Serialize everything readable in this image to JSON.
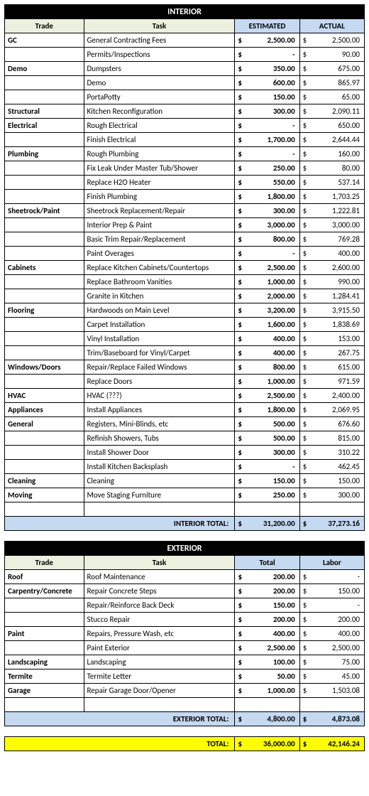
{
  "interior": {
    "title": "INTERIOR",
    "headers": {
      "trade": "Trade",
      "task": "Task",
      "est": "ESTIMATED",
      "act": "ACTUAL"
    },
    "rows": [
      {
        "trade": "GC",
        "task": "General Contracting Fees",
        "est": "2,500.00",
        "act": "2,500.00"
      },
      {
        "trade": "",
        "task": "Permits/Inspections",
        "est": "-",
        "act": "90.00"
      },
      {
        "trade": "Demo",
        "task": "Dumpsters",
        "est": "350.00",
        "act": "675.00"
      },
      {
        "trade": "",
        "task": "Demo",
        "est": "600.00",
        "act": "865.97"
      },
      {
        "trade": "",
        "task": "PortaPotty",
        "est": "150.00",
        "act": "65.00"
      },
      {
        "trade": "Structural",
        "task": "Kitchen Reconfiguration",
        "est": "300.00",
        "act": "2,090.11"
      },
      {
        "trade": "Electrical",
        "task": "Rough Electrical",
        "est": "-",
        "act": "650.00"
      },
      {
        "trade": "",
        "task": "Finish Electrical",
        "est": "1,700.00",
        "act": "2,644.44"
      },
      {
        "trade": "Plumbing",
        "task": "Rough Plumbing",
        "est": "-",
        "act": "160.00"
      },
      {
        "trade": "",
        "task": "Fix Leak Under Master Tub/Shower",
        "est": "250.00",
        "act": "80.00"
      },
      {
        "trade": "",
        "task": "Replace H2O Heater",
        "est": "550.00",
        "act": "537.14"
      },
      {
        "trade": "",
        "task": "Finish Plumbing",
        "est": "1,800.00",
        "act": "1,703.25"
      },
      {
        "trade": "Sheetrock/Paint",
        "task": "Sheetrock Replacement/Repair",
        "est": "300.00",
        "act": "1,222.81"
      },
      {
        "trade": "",
        "task": "Interior Prep & Paint",
        "est": "3,000.00",
        "act": "3,000.00"
      },
      {
        "trade": "",
        "task": "Basic Trim Repair/Replacement",
        "est": "800.00",
        "act": "769.28"
      },
      {
        "trade": "",
        "task": "Paint Overages",
        "est": "-",
        "act": "400.00"
      },
      {
        "trade": "Cabinets",
        "task": "Replace Kitchen Cabinets/Countertops",
        "est": "2,500.00",
        "act": "2,600.00"
      },
      {
        "trade": "",
        "task": "Replace Bathroom Vanities",
        "est": "1,000.00",
        "act": "990.00"
      },
      {
        "trade": "",
        "task": "Granite in Kitchen",
        "est": "2,000.00",
        "act": "1,284.41"
      },
      {
        "trade": "Flooring",
        "task": "Hardwoods on Main Level",
        "est": "3,200.00",
        "act": "3,915.50"
      },
      {
        "trade": "",
        "task": "Carpet Installation",
        "est": "1,600.00",
        "act": "1,838.69"
      },
      {
        "trade": "",
        "task": "Vinyl Installation",
        "est": "400.00",
        "act": "153.00"
      },
      {
        "trade": "",
        "task": "Trim/Baseboard for Vinyl/Carpet",
        "est": "400.00",
        "act": "267.75"
      },
      {
        "trade": "Windows/Doors",
        "task": "Repair/Replace Failed Windows",
        "est": "800.00",
        "act": "615.00"
      },
      {
        "trade": "",
        "task": "Replace Doors",
        "est": "1,000.00",
        "act": "971.59"
      },
      {
        "trade": "HVAC",
        "task": "HVAC (???)",
        "est": "2,500.00",
        "act": "2,400.00"
      },
      {
        "trade": "Appliances",
        "task": "Install Appliances",
        "est": "1,800.00",
        "act": "2,069.95"
      },
      {
        "trade": "General",
        "task": "Registers, Mini-Blinds, etc",
        "est": "500.00",
        "act": "676.60"
      },
      {
        "trade": "",
        "task": "Refinish Showers, Tubs",
        "est": "500.00",
        "act": "815.00"
      },
      {
        "trade": "",
        "task": "Install Shower Door",
        "est": "300.00",
        "act": "310.22"
      },
      {
        "trade": "",
        "task": "Install Kitchen Backsplash",
        "est": "-",
        "act": "462.45"
      },
      {
        "trade": "Cleaning",
        "task": "Cleaning",
        "est": "150.00",
        "act": "150.00"
      },
      {
        "trade": "Moving",
        "task": "Move Staging Furniture",
        "est": "250.00",
        "act": "300.00"
      }
    ],
    "total_label": "INTERIOR TOTAL:",
    "total_est": "31,200.00",
    "total_act": "37,273.16"
  },
  "exterior": {
    "title": "EXTERIOR",
    "headers": {
      "trade": "Trade",
      "task": "Task",
      "est": "Total",
      "act": "Labor"
    },
    "rows": [
      {
        "trade": "Roof",
        "task": "Roof Maintenance",
        "est": "200.00",
        "act": "-"
      },
      {
        "trade": "Carpentry/Concrete",
        "task": "Repair Concrete Steps",
        "est": "200.00",
        "act": "150.00"
      },
      {
        "trade": "",
        "task": "Repair/Reinforce Back Deck",
        "est": "150.00",
        "act": "-"
      },
      {
        "trade": "",
        "task": "Stucco Repair",
        "est": "200.00",
        "act": "200.00"
      },
      {
        "trade": "Paint",
        "task": "Repairs, Pressure Wash, etc",
        "est": "400.00",
        "act": "400.00"
      },
      {
        "trade": "",
        "task": "Paint Exterior",
        "est": "2,500.00",
        "act": "2,500.00"
      },
      {
        "trade": "Landscaping",
        "task": "Landscaping",
        "est": "100.00",
        "act": "75.00"
      },
      {
        "trade": "Termite",
        "task": "Termite Letter",
        "est": "50.00",
        "act": "45.00"
      },
      {
        "trade": "Garage",
        "task": "Repair Garage Door/Opener",
        "est": "1,000.00",
        "act": "1,503.08"
      }
    ],
    "total_label": "EXTERIOR TOTAL:",
    "total_est": "4,800.00",
    "total_act": "4,873.08"
  },
  "grand": {
    "label": "TOTAL:",
    "est": "36,000.00",
    "act": "42,146.24"
  }
}
